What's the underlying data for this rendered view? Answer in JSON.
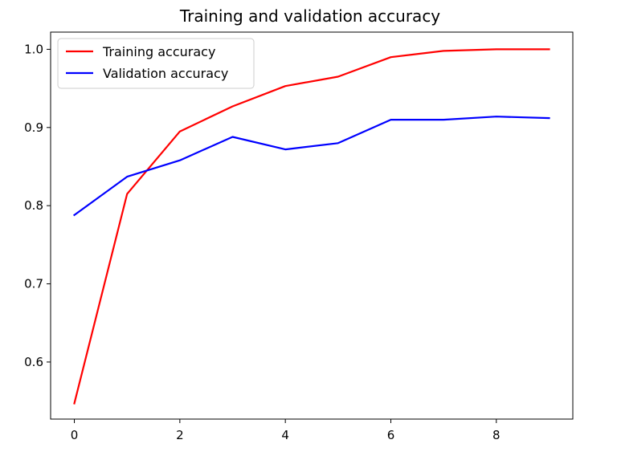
{
  "chart_data": {
    "type": "line",
    "title": "Training and validation accuracy",
    "xlabel": "",
    "ylabel": "",
    "x": [
      0,
      1,
      2,
      3,
      4,
      5,
      6,
      7,
      8,
      9
    ],
    "xlim": [
      -0.45,
      9.45
    ],
    "ylim": [
      0.527,
      1.022
    ],
    "xticks": [
      0,
      2,
      4,
      6,
      8
    ],
    "yticks": [
      0.6,
      0.7,
      0.8,
      0.9,
      1.0
    ],
    "xtick_labels": [
      "0",
      "2",
      "4",
      "6",
      "8"
    ],
    "ytick_labels": [
      "0.6",
      "0.7",
      "0.8",
      "0.9",
      "1.0"
    ],
    "grid": false,
    "legend_position": "top-left",
    "series": [
      {
        "name": "Training accuracy",
        "color": "#ff0000",
        "values": [
          0.547,
          0.815,
          0.895,
          0.927,
          0.953,
          0.965,
          0.99,
          0.998,
          1.0,
          1.0
        ]
      },
      {
        "name": "Validation accuracy",
        "color": "#0000ff",
        "values": [
          0.788,
          0.837,
          0.858,
          0.888,
          0.872,
          0.88,
          0.91,
          0.91,
          0.914,
          0.912
        ]
      }
    ]
  }
}
